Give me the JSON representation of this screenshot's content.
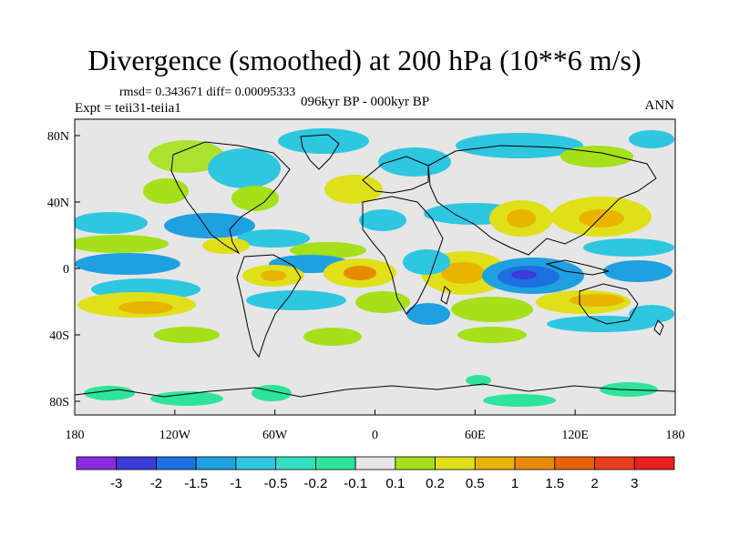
{
  "title": "Divergence (smoothed) at 200 hPa (10**6 m/s)",
  "stats": "rmsd= 0.343671 diff= 0.00095333",
  "experiment": "Expt = teii31-teiia1",
  "period": "096kyr BP - 000kyr BP",
  "season": "ANN",
  "chart_data": {
    "type": "map",
    "x_ticks": [
      "180",
      "120W",
      "60W",
      "0",
      "60E",
      "120E",
      "180"
    ],
    "y_ticks": [
      "80N",
      "40N",
      "0",
      "40S",
      "80S"
    ],
    "colorbar": {
      "labels": [
        "-3",
        "-2",
        "-1.5",
        "-1",
        "-0.5",
        "-0.2",
        "-0.1",
        "0.1",
        "0.2",
        "0.5",
        "1",
        "1.5",
        "2",
        "3"
      ],
      "colors": [
        "#8a2be2",
        "#3b3bd8",
        "#1e6fe0",
        "#1fa0e0",
        "#2fc6e0",
        "#33dfc0",
        "#2ee39a",
        "#e6e6e6",
        "#a5e01a",
        "#dfe01a",
        "#e8b400",
        "#e88a00",
        "#e86200",
        "#e83c1e",
        "#e8201e"
      ]
    },
    "colors": {
      "neutral": "#e6e6e6",
      "coast": "#000000"
    }
  }
}
